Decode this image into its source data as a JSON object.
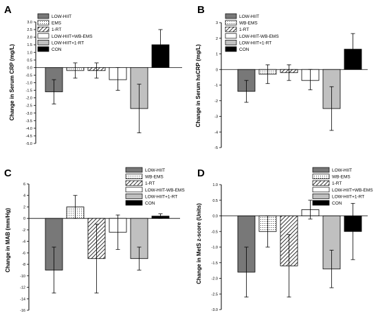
{
  "figure": {
    "panels": [
      "A",
      "B",
      "C",
      "D"
    ]
  },
  "colors": {
    "low_hiit": "#787878",
    "wb_ems": "#ffffff",
    "one_rt": "#ffffff",
    "low_hiit_wb_ems": "#ffffff",
    "low_hiit_1_rt": "#c0c0c0",
    "con": "#000000",
    "axis": "#000000"
  },
  "chart_data": [
    {
      "panel": "A",
      "type": "bar",
      "ylabel": "Change in Serum CRP (mg/L)",
      "ylim": [
        -5.0,
        3.0
      ],
      "yticks": [
        "-5.0",
        "-4.5",
        "-4.0",
        "-3.5",
        "-3.0",
        "-2.5",
        "-2.0",
        "-1.5",
        "-1.0",
        "-0.5",
        "0.0",
        "0.5",
        "1.0",
        "1.5",
        "2.0",
        "2.5",
        "3.0"
      ],
      "ytick_values": [
        -5.0,
        -4.5,
        -4.0,
        -3.5,
        -3.0,
        -2.5,
        -2.0,
        -1.5,
        -1.0,
        -0.5,
        0.0,
        0.5,
        1.0,
        1.5,
        2.0,
        2.5,
        3.0
      ],
      "legend_position": "top-left",
      "series": [
        {
          "name": "LOW-HIIT",
          "value": -1.6,
          "err_low": -2.4,
          "err_high": -0.8,
          "pattern": "solid-gray"
        },
        {
          "name": "EMS",
          "value": -0.2,
          "err_low": -0.7,
          "err_high": 0.3,
          "pattern": "dots"
        },
        {
          "name": "1-RT",
          "value": -0.2,
          "err_low": -0.7,
          "err_high": 0.3,
          "pattern": "hatch"
        },
        {
          "name": "LOW-HIIT+WB-EMS",
          "value": -0.8,
          "err_low": -1.5,
          "err_high": 0.0,
          "pattern": "white"
        },
        {
          "name": "LOW-HIIT+1-RT",
          "value": -2.7,
          "err_low": -4.3,
          "err_high": -1.1,
          "pattern": "light-gray"
        },
        {
          "name": "CON",
          "value": 1.5,
          "err_low": 0.6,
          "err_high": 2.5,
          "pattern": "black"
        }
      ]
    },
    {
      "panel": "B",
      "type": "bar",
      "ylabel": "Change in Serum hsCRP (mg/L)",
      "ylim": [
        -5,
        3
      ],
      "yticks": [
        "-5",
        "-4",
        "-3",
        "-2",
        "-1",
        "0",
        "1",
        "2",
        "3"
      ],
      "ytick_values": [
        -5,
        -4,
        -3,
        -2,
        -1,
        0,
        1,
        2,
        3
      ],
      "legend_position": "top-left",
      "series": [
        {
          "name": "LOW-HIIT",
          "value": -1.4,
          "err_low": -2.1,
          "err_high": -0.7,
          "pattern": "solid-gray"
        },
        {
          "name": "WB-EMS",
          "value": -0.3,
          "err_low": -0.9,
          "err_high": 0.3,
          "pattern": "dots"
        },
        {
          "name": "1-RT",
          "value": -0.2,
          "err_low": -0.7,
          "err_high": 0.3,
          "pattern": "hatch"
        },
        {
          "name": "LOW-HIIT-WB-EMS",
          "value": -0.7,
          "err_low": -1.3,
          "err_high": 0.0,
          "pattern": "white"
        },
        {
          "name": "LOW-HIIT+1-RT",
          "value": -2.5,
          "err_low": -3.9,
          "err_high": -1.1,
          "pattern": "light-gray"
        },
        {
          "name": "CON",
          "value": 1.3,
          "err_low": 0.3,
          "err_high": 2.3,
          "pattern": "black"
        }
      ]
    },
    {
      "panel": "C",
      "type": "bar",
      "ylabel": "Change in MAB (mm/Hg)",
      "ylim": [
        -16,
        6
      ],
      "yticks": [
        "-16",
        "-14",
        "-12",
        "-10",
        "-8",
        "-6",
        "-4",
        "-2",
        "0",
        "2",
        "4",
        "6"
      ],
      "ytick_values": [
        -16,
        -14,
        -12,
        -10,
        -8,
        -6,
        -4,
        -2,
        0,
        2,
        4,
        6
      ],
      "legend_position": "top-right",
      "series": [
        {
          "name": "LOW-HIIT",
          "value": -9.0,
          "err_low": -13.0,
          "err_high": -5.0,
          "pattern": "solid-gray"
        },
        {
          "name": "WB-EMS",
          "value": 2.0,
          "err_low": 0.0,
          "err_high": 4.0,
          "pattern": "dots"
        },
        {
          "name": "1-RT",
          "value": -7.0,
          "err_low": -13.0,
          "err_high": -1.0,
          "pattern": "hatch"
        },
        {
          "name": "LOW-HIIT-WB-EMS",
          "value": -2.4,
          "err_low": -5.4,
          "err_high": 0.6,
          "pattern": "white"
        },
        {
          "name": "LOW-HIIT+1-RT",
          "value": -7.0,
          "err_low": -9.0,
          "err_high": -5.0,
          "pattern": "light-gray"
        },
        {
          "name": "CON",
          "value": 0.4,
          "err_low": 0.0,
          "err_high": 0.8,
          "pattern": "black"
        }
      ]
    },
    {
      "panel": "D",
      "type": "bar",
      "ylabel": "Change in MetS z-score (Units)",
      "ylim": [
        -3.0,
        1.0
      ],
      "yticks": [
        "-3.0",
        "-2.5",
        "-2.0",
        "-1.5",
        "-1.0",
        "-0.5",
        "0.0",
        "0.5",
        "1.0"
      ],
      "ytick_values": [
        -3.0,
        -2.5,
        -2.0,
        -1.5,
        -1.0,
        -0.5,
        0.0,
        0.5,
        1.0
      ],
      "legend_position": "top-right",
      "series": [
        {
          "name": "LOW-HIIT",
          "value": -1.8,
          "err_low": -2.6,
          "err_high": -1.0,
          "pattern": "solid-gray"
        },
        {
          "name": "WB-EMS",
          "value": -0.5,
          "err_low": -1.0,
          "err_high": 0.0,
          "pattern": "dots"
        },
        {
          "name": "1-RT",
          "value": -1.6,
          "err_low": -2.6,
          "err_high": -0.6,
          "pattern": "hatch"
        },
        {
          "name": "LOW-HIIT+WB-EMS",
          "value": 0.2,
          "err_low": -0.1,
          "err_high": 0.5,
          "pattern": "white"
        },
        {
          "name": "LOW-HIIT+1-RT",
          "value": -1.7,
          "err_low": -2.3,
          "err_high": -1.1,
          "pattern": "light-gray"
        },
        {
          "name": "CON",
          "value": -0.5,
          "err_low": -1.4,
          "err_high": 0.4,
          "pattern": "black"
        }
      ]
    }
  ]
}
